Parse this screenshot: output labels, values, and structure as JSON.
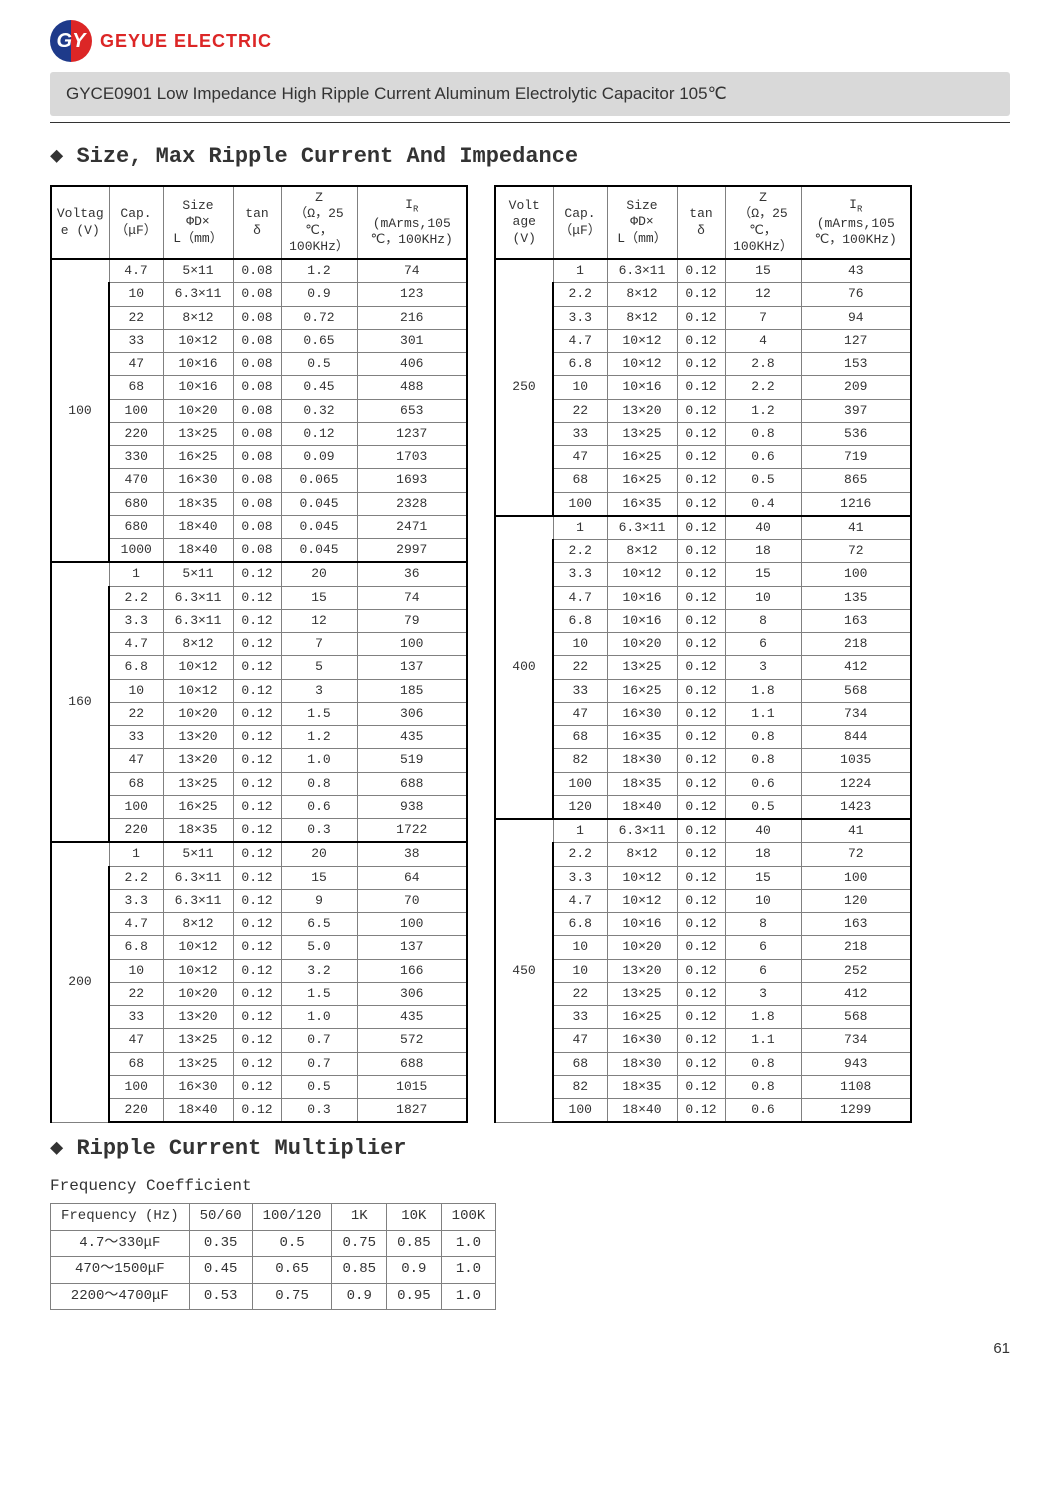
{
  "logo": {
    "badge_text": "GY",
    "brand_text": "GEYUE ELECTRIC"
  },
  "doc_header": "GYCE0901 Low Impedance High Ripple Current Aluminum Electrolytic Capacitor 105℃",
  "section1_title": "Size, Max Ripple Current And Impedance",
  "section2_title": "Ripple Current Multiplier",
  "freq_subtitle": "Frequency Coefficient",
  "page_number": "61",
  "columns": {
    "voltage": "Voltage (V)",
    "voltage2": "Voltage (V)",
    "cap": "Cap. (μF)",
    "size": "Size ΦD× L（mm）",
    "tan": "tan δ",
    "z": "Z (Ω，25℃，100KHz）",
    "ir": "IR (mArms,105℃，100KHz)"
  },
  "groups_left": [
    {
      "voltage": "100",
      "rows": [
        {
          "cap": "4.7",
          "size": "5×11",
          "tan": "0.08",
          "z": "1.2",
          "ir": "74"
        },
        {
          "cap": "10",
          "size": "6.3×11",
          "tan": "0.08",
          "z": "0.9",
          "ir": "123"
        },
        {
          "cap": "22",
          "size": "8×12",
          "tan": "0.08",
          "z": "0.72",
          "ir": "216"
        },
        {
          "cap": "33",
          "size": "10×12",
          "tan": "0.08",
          "z": "0.65",
          "ir": "301"
        },
        {
          "cap": "47",
          "size": "10×16",
          "tan": "0.08",
          "z": "0.5",
          "ir": "406"
        },
        {
          "cap": "68",
          "size": "10×16",
          "tan": "0.08",
          "z": "0.45",
          "ir": "488"
        },
        {
          "cap": "100",
          "size": "10×20",
          "tan": "0.08",
          "z": "0.32",
          "ir": "653"
        },
        {
          "cap": "220",
          "size": "13×25",
          "tan": "0.08",
          "z": "0.12",
          "ir": "1237"
        },
        {
          "cap": "330",
          "size": "16×25",
          "tan": "0.08",
          "z": "0.09",
          "ir": "1703"
        },
        {
          "cap": "470",
          "size": "16×30",
          "tan": "0.08",
          "z": "0.065",
          "ir": "1693"
        },
        {
          "cap": "680",
          "size": "18×35",
          "tan": "0.08",
          "z": "0.045",
          "ir": "2328"
        },
        {
          "cap": "680",
          "size": "18×40",
          "tan": "0.08",
          "z": "0.045",
          "ir": "2471"
        },
        {
          "cap": "1000",
          "size": "18×40",
          "tan": "0.08",
          "z": "0.045",
          "ir": "2997"
        }
      ]
    },
    {
      "voltage": "160",
      "rows": [
        {
          "cap": "1",
          "size": "5×11",
          "tan": "0.12",
          "z": "20",
          "ir": "36"
        },
        {
          "cap": "2.2",
          "size": "6.3×11",
          "tan": "0.12",
          "z": "15",
          "ir": "74"
        },
        {
          "cap": "3.3",
          "size": "6.3×11",
          "tan": "0.12",
          "z": "12",
          "ir": "79"
        },
        {
          "cap": "4.7",
          "size": "8×12",
          "tan": "0.12",
          "z": "7",
          "ir": "100"
        },
        {
          "cap": "6.8",
          "size": "10×12",
          "tan": "0.12",
          "z": "5",
          "ir": "137"
        },
        {
          "cap": "10",
          "size": "10×12",
          "tan": "0.12",
          "z": "3",
          "ir": "185"
        },
        {
          "cap": "22",
          "size": "10×20",
          "tan": "0.12",
          "z": "1.5",
          "ir": "306"
        },
        {
          "cap": "33",
          "size": "13×20",
          "tan": "0.12",
          "z": "1.2",
          "ir": "435"
        },
        {
          "cap": "47",
          "size": "13×20",
          "tan": "0.12",
          "z": "1.0",
          "ir": "519"
        },
        {
          "cap": "68",
          "size": "13×25",
          "tan": "0.12",
          "z": "0.8",
          "ir": "688"
        },
        {
          "cap": "100",
          "size": "16×25",
          "tan": "0.12",
          "z": "0.6",
          "ir": "938"
        },
        {
          "cap": "220",
          "size": "18×35",
          "tan": "0.12",
          "z": "0.3",
          "ir": "1722"
        }
      ]
    },
    {
      "voltage": "200",
      "rows": [
        {
          "cap": "1",
          "size": "5×11",
          "tan": "0.12",
          "z": "20",
          "ir": "38"
        },
        {
          "cap": "2.2",
          "size": "6.3×11",
          "tan": "0.12",
          "z": "15",
          "ir": "64"
        },
        {
          "cap": "3.3",
          "size": "6.3×11",
          "tan": "0.12",
          "z": "9",
          "ir": "70"
        },
        {
          "cap": "4.7",
          "size": "8×12",
          "tan": "0.12",
          "z": "6.5",
          "ir": "100"
        },
        {
          "cap": "6.8",
          "size": "10×12",
          "tan": "0.12",
          "z": "5.0",
          "ir": "137"
        },
        {
          "cap": "10",
          "size": "10×12",
          "tan": "0.12",
          "z": "3.2",
          "ir": "166"
        },
        {
          "cap": "22",
          "size": "10×20",
          "tan": "0.12",
          "z": "1.5",
          "ir": "306"
        },
        {
          "cap": "33",
          "size": "13×20",
          "tan": "0.12",
          "z": "1.0",
          "ir": "435"
        },
        {
          "cap": "47",
          "size": "13×25",
          "tan": "0.12",
          "z": "0.7",
          "ir": "572"
        },
        {
          "cap": "68",
          "size": "13×25",
          "tan": "0.12",
          "z": "0.7",
          "ir": "688"
        },
        {
          "cap": "100",
          "size": "16×30",
          "tan": "0.12",
          "z": "0.5",
          "ir": "1015"
        },
        {
          "cap": "220",
          "size": "18×40",
          "tan": "0.12",
          "z": "0.3",
          "ir": "1827"
        }
      ]
    }
  ],
  "groups_right": [
    {
      "voltage": "250",
      "rows": [
        {
          "cap": "1",
          "size": "6.3×11",
          "tan": "0.12",
          "z": "15",
          "ir": "43"
        },
        {
          "cap": "2.2",
          "size": "8×12",
          "tan": "0.12",
          "z": "12",
          "ir": "76"
        },
        {
          "cap": "3.3",
          "size": "8×12",
          "tan": "0.12",
          "z": "7",
          "ir": "94"
        },
        {
          "cap": "4.7",
          "size": "10×12",
          "tan": "0.12",
          "z": "4",
          "ir": "127"
        },
        {
          "cap": "6.8",
          "size": "10×12",
          "tan": "0.12",
          "z": "2.8",
          "ir": "153"
        },
        {
          "cap": "10",
          "size": "10×16",
          "tan": "0.12",
          "z": "2.2",
          "ir": "209"
        },
        {
          "cap": "22",
          "size": "13×20",
          "tan": "0.12",
          "z": "1.2",
          "ir": "397"
        },
        {
          "cap": "33",
          "size": "13×25",
          "tan": "0.12",
          "z": "0.8",
          "ir": "536"
        },
        {
          "cap": "47",
          "size": "16×25",
          "tan": "0.12",
          "z": "0.6",
          "ir": "719"
        },
        {
          "cap": "68",
          "size": "16×25",
          "tan": "0.12",
          "z": "0.5",
          "ir": "865"
        },
        {
          "cap": "100",
          "size": "16×35",
          "tan": "0.12",
          "z": "0.4",
          "ir": "1216"
        }
      ]
    },
    {
      "voltage": "400",
      "rows": [
        {
          "cap": "1",
          "size": "6.3×11",
          "tan": "0.12",
          "z": "40",
          "ir": "41"
        },
        {
          "cap": "2.2",
          "size": "8×12",
          "tan": "0.12",
          "z": "18",
          "ir": "72"
        },
        {
          "cap": "3.3",
          "size": "10×12",
          "tan": "0.12",
          "z": "15",
          "ir": "100"
        },
        {
          "cap": "4.7",
          "size": "10×16",
          "tan": "0.12",
          "z": "10",
          "ir": "135"
        },
        {
          "cap": "6.8",
          "size": "10×16",
          "tan": "0.12",
          "z": "8",
          "ir": "163"
        },
        {
          "cap": "10",
          "size": "10×20",
          "tan": "0.12",
          "z": "6",
          "ir": "218"
        },
        {
          "cap": "22",
          "size": "13×25",
          "tan": "0.12",
          "z": "3",
          "ir": "412"
        },
        {
          "cap": "33",
          "size": "16×25",
          "tan": "0.12",
          "z": "1.8",
          "ir": "568"
        },
        {
          "cap": "47",
          "size": "16×30",
          "tan": "0.12",
          "z": "1.1",
          "ir": "734"
        },
        {
          "cap": "68",
          "size": "16×35",
          "tan": "0.12",
          "z": "0.8",
          "ir": "844"
        },
        {
          "cap": "82",
          "size": "18×30",
          "tan": "0.12",
          "z": "0.8",
          "ir": "1035"
        },
        {
          "cap": "100",
          "size": "18×35",
          "tan": "0.12",
          "z": "0.6",
          "ir": "1224"
        },
        {
          "cap": "120",
          "size": "18×40",
          "tan": "0.12",
          "z": "0.5",
          "ir": "1423"
        }
      ]
    },
    {
      "voltage": "450",
      "rows": [
        {
          "cap": "1",
          "size": "6.3×11",
          "tan": "0.12",
          "z": "40",
          "ir": "41"
        },
        {
          "cap": "2.2",
          "size": "8×12",
          "tan": "0.12",
          "z": "18",
          "ir": "72"
        },
        {
          "cap": "3.3",
          "size": "10×12",
          "tan": "0.12",
          "z": "15",
          "ir": "100"
        },
        {
          "cap": "4.7",
          "size": "10×12",
          "tan": "0.12",
          "z": "10",
          "ir": "120"
        },
        {
          "cap": "6.8",
          "size": "10×16",
          "tan": "0.12",
          "z": "8",
          "ir": "163"
        },
        {
          "cap": "10",
          "size": "10×20",
          "tan": "0.12",
          "z": "6",
          "ir": "218"
        },
        {
          "cap": "10",
          "size": "13×20",
          "tan": "0.12",
          "z": "6",
          "ir": "252"
        },
        {
          "cap": "22",
          "size": "13×25",
          "tan": "0.12",
          "z": "3",
          "ir": "412"
        },
        {
          "cap": "33",
          "size": "16×25",
          "tan": "0.12",
          "z": "1.8",
          "ir": "568"
        },
        {
          "cap": "47",
          "size": "16×30",
          "tan": "0.12",
          "z": "1.1",
          "ir": "734"
        },
        {
          "cap": "68",
          "size": "18×30",
          "tan": "0.12",
          "z": "0.8",
          "ir": "943"
        },
        {
          "cap": "82",
          "size": "18×35",
          "tan": "0.12",
          "z": "0.8",
          "ir": "1108"
        },
        {
          "cap": "100",
          "size": "18×40",
          "tan": "0.12",
          "z": "0.6",
          "ir": "1299"
        }
      ]
    }
  ],
  "freq_table": {
    "header": [
      "Frequency (Hz)",
      "50/60",
      "100/120",
      "1K",
      "10K",
      "100K"
    ],
    "rows": [
      [
        "4.7～330μF",
        "0.35",
        "0.5",
        "0.75",
        "0.85",
        "1.0"
      ],
      [
        "470～1500μF",
        "0.45",
        "0.65",
        "0.85",
        "0.9",
        "1.0"
      ],
      [
        "2200～4700μF",
        "0.53",
        "0.75",
        "0.9",
        "0.95",
        "1.0"
      ]
    ]
  }
}
